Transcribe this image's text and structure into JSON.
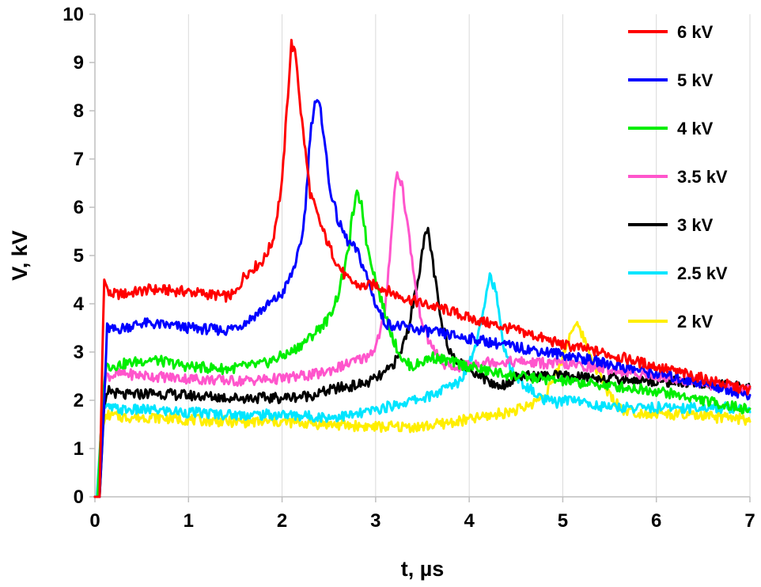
{
  "chart_data": {
    "type": "line",
    "title": "",
    "xlabel": "t, µs",
    "ylabel": "V, kV",
    "xlim": [
      0,
      7
    ],
    "ylim": [
      0,
      10
    ],
    "xticks": [
      0,
      1,
      2,
      3,
      4,
      5,
      6,
      7
    ],
    "yticks": [
      0,
      1,
      2,
      3,
      4,
      5,
      6,
      7,
      8,
      9,
      10
    ],
    "grid": "vertical",
    "legend": "right",
    "series": [
      {
        "name": "6 kV",
        "color": "#ff0000",
        "points": [
          [
            0,
            0
          ],
          [
            0.05,
            0
          ],
          [
            0.08,
            3.0
          ],
          [
            0.1,
            4.5
          ],
          [
            0.15,
            4.2
          ],
          [
            0.3,
            4.2
          ],
          [
            0.6,
            4.3
          ],
          [
            1.0,
            4.25
          ],
          [
            1.4,
            4.15
          ],
          [
            1.5,
            4.2
          ],
          [
            1.6,
            4.6
          ],
          [
            1.8,
            4.9
          ],
          [
            1.9,
            5.3
          ],
          [
            2.0,
            6.5
          ],
          [
            2.05,
            8.0
          ],
          [
            2.1,
            9.4
          ],
          [
            2.15,
            9.1
          ],
          [
            2.2,
            8.0
          ],
          [
            2.3,
            6.3
          ],
          [
            2.4,
            5.7
          ],
          [
            2.5,
            5.2
          ],
          [
            2.6,
            4.8
          ],
          [
            2.7,
            4.5
          ],
          [
            2.85,
            4.35
          ],
          [
            3.0,
            4.4
          ],
          [
            3.2,
            4.2
          ],
          [
            3.5,
            4.0
          ],
          [
            3.8,
            3.85
          ],
          [
            4.0,
            3.7
          ],
          [
            4.3,
            3.55
          ],
          [
            4.6,
            3.4
          ],
          [
            5.0,
            3.15
          ],
          [
            5.4,
            3.0
          ],
          [
            5.8,
            2.8
          ],
          [
            6.2,
            2.6
          ],
          [
            6.6,
            2.4
          ],
          [
            7.0,
            2.2
          ]
        ]
      },
      {
        "name": "5 kV",
        "color": "#0000ff",
        "points": [
          [
            0,
            0
          ],
          [
            0.05,
            0
          ],
          [
            0.1,
            2.0
          ],
          [
            0.13,
            3.5
          ],
          [
            0.2,
            3.45
          ],
          [
            0.5,
            3.6
          ],
          [
            0.8,
            3.55
          ],
          [
            1.0,
            3.5
          ],
          [
            1.4,
            3.45
          ],
          [
            1.6,
            3.6
          ],
          [
            1.8,
            3.9
          ],
          [
            2.0,
            4.2
          ],
          [
            2.1,
            4.6
          ],
          [
            2.2,
            5.2
          ],
          [
            2.25,
            6.0
          ],
          [
            2.3,
            7.5
          ],
          [
            2.35,
            8.2
          ],
          [
            2.4,
            8.1
          ],
          [
            2.45,
            7.5
          ],
          [
            2.5,
            6.5
          ],
          [
            2.6,
            5.7
          ],
          [
            2.7,
            5.3
          ],
          [
            2.8,
            5.1
          ],
          [
            2.9,
            4.6
          ],
          [
            3.0,
            4.0
          ],
          [
            3.1,
            3.6
          ],
          [
            3.2,
            3.55
          ],
          [
            3.5,
            3.45
          ],
          [
            3.8,
            3.35
          ],
          [
            4.1,
            3.25
          ],
          [
            4.5,
            3.1
          ],
          [
            5.0,
            2.95
          ],
          [
            5.5,
            2.75
          ],
          [
            6.0,
            2.55
          ],
          [
            6.5,
            2.35
          ],
          [
            7.0,
            2.1
          ]
        ]
      },
      {
        "name": "4 kV",
        "color": "#00ee00",
        "points": [
          [
            0,
            0
          ],
          [
            0.03,
            0
          ],
          [
            0.08,
            2.0
          ],
          [
            0.12,
            2.7
          ],
          [
            0.3,
            2.75
          ],
          [
            0.6,
            2.85
          ],
          [
            1.0,
            2.7
          ],
          [
            1.4,
            2.65
          ],
          [
            1.8,
            2.75
          ],
          [
            2.1,
            3.0
          ],
          [
            2.3,
            3.3
          ],
          [
            2.5,
            3.7
          ],
          [
            2.6,
            4.2
          ],
          [
            2.7,
            5.0
          ],
          [
            2.75,
            5.8
          ],
          [
            2.8,
            6.25
          ],
          [
            2.85,
            6.1
          ],
          [
            2.9,
            5.3
          ],
          [
            3.0,
            4.5
          ],
          [
            3.1,
            3.8
          ],
          [
            3.2,
            3.2
          ],
          [
            3.3,
            2.8
          ],
          [
            3.4,
            2.7
          ],
          [
            3.6,
            2.9
          ],
          [
            3.8,
            2.8
          ],
          [
            4.0,
            2.7
          ],
          [
            4.2,
            2.6
          ],
          [
            4.5,
            2.5
          ],
          [
            5.0,
            2.4
          ],
          [
            5.5,
            2.3
          ],
          [
            6.0,
            2.2
          ],
          [
            6.5,
            2.0
          ],
          [
            7.0,
            1.8
          ]
        ]
      },
      {
        "name": "3.5 kV",
        "color": "#ff55cc",
        "points": [
          [
            0,
            0
          ],
          [
            0.03,
            0
          ],
          [
            0.08,
            2.0
          ],
          [
            0.12,
            2.5
          ],
          [
            0.3,
            2.55
          ],
          [
            0.6,
            2.5
          ],
          [
            1.0,
            2.45
          ],
          [
            1.5,
            2.4
          ],
          [
            2.0,
            2.45
          ],
          [
            2.4,
            2.55
          ],
          [
            2.7,
            2.75
          ],
          [
            2.9,
            2.9
          ],
          [
            3.0,
            3.1
          ],
          [
            3.1,
            3.8
          ],
          [
            3.15,
            5.0
          ],
          [
            3.2,
            6.3
          ],
          [
            3.23,
            6.7
          ],
          [
            3.28,
            6.5
          ],
          [
            3.35,
            5.5
          ],
          [
            3.45,
            4.0
          ],
          [
            3.55,
            3.3
          ],
          [
            3.7,
            2.8
          ],
          [
            3.8,
            2.65
          ],
          [
            4.0,
            2.75
          ],
          [
            4.2,
            2.8
          ],
          [
            4.5,
            2.8
          ],
          [
            5.0,
            2.75
          ],
          [
            5.5,
            2.65
          ],
          [
            6.0,
            2.5
          ],
          [
            6.5,
            2.35
          ],
          [
            7.0,
            2.2
          ]
        ]
      },
      {
        "name": "3 kV",
        "color": "#000000",
        "points": [
          [
            0,
            0
          ],
          [
            0.05,
            0
          ],
          [
            0.1,
            1.9
          ],
          [
            0.15,
            2.2
          ],
          [
            0.3,
            2.1
          ],
          [
            0.6,
            2.15
          ],
          [
            1.0,
            2.1
          ],
          [
            1.5,
            2.05
          ],
          [
            2.0,
            2.05
          ],
          [
            2.3,
            2.1
          ],
          [
            2.6,
            2.25
          ],
          [
            2.9,
            2.35
          ],
          [
            3.1,
            2.55
          ],
          [
            3.25,
            2.9
          ],
          [
            3.35,
            3.5
          ],
          [
            3.45,
            4.5
          ],
          [
            3.52,
            5.3
          ],
          [
            3.56,
            5.55
          ],
          [
            3.6,
            5.0
          ],
          [
            3.7,
            3.6
          ],
          [
            3.8,
            3.0
          ],
          [
            3.95,
            2.7
          ],
          [
            4.1,
            2.55
          ],
          [
            4.2,
            2.4
          ],
          [
            4.3,
            2.3
          ],
          [
            4.4,
            2.35
          ],
          [
            4.5,
            2.5
          ],
          [
            5.0,
            2.5
          ],
          [
            5.5,
            2.45
          ],
          [
            6.0,
            2.4
          ],
          [
            6.5,
            2.35
          ],
          [
            7.0,
            2.25
          ]
        ]
      },
      {
        "name": "2.5 kV",
        "color": "#00e5ff",
        "points": [
          [
            0,
            0
          ],
          [
            0.02,
            0
          ],
          [
            0.07,
            1.5
          ],
          [
            0.1,
            1.85
          ],
          [
            0.3,
            1.8
          ],
          [
            0.6,
            1.8
          ],
          [
            1.0,
            1.75
          ],
          [
            1.5,
            1.7
          ],
          [
            2.0,
            1.7
          ],
          [
            2.5,
            1.65
          ],
          [
            2.8,
            1.7
          ],
          [
            3.2,
            1.9
          ],
          [
            3.6,
            2.1
          ],
          [
            3.9,
            2.4
          ],
          [
            4.05,
            3.0
          ],
          [
            4.15,
            3.9
          ],
          [
            4.22,
            4.6
          ],
          [
            4.28,
            4.3
          ],
          [
            4.35,
            3.3
          ],
          [
            4.45,
            2.6
          ],
          [
            4.6,
            2.3
          ],
          [
            4.8,
            2.0
          ],
          [
            4.95,
            1.95
          ],
          [
            5.1,
            2.05
          ],
          [
            5.3,
            1.9
          ],
          [
            5.6,
            1.85
          ],
          [
            6.0,
            1.85
          ],
          [
            6.5,
            1.85
          ],
          [
            7.0,
            1.85
          ]
        ]
      },
      {
        "name": "2 kV",
        "color": "#ffee00",
        "points": [
          [
            0,
            0
          ],
          [
            0.04,
            0
          ],
          [
            0.08,
            1.4
          ],
          [
            0.12,
            1.7
          ],
          [
            0.3,
            1.65
          ],
          [
            0.6,
            1.65
          ],
          [
            1.0,
            1.6
          ],
          [
            1.5,
            1.55
          ],
          [
            2.0,
            1.55
          ],
          [
            2.5,
            1.5
          ],
          [
            3.0,
            1.45
          ],
          [
            3.5,
            1.45
          ],
          [
            4.0,
            1.6
          ],
          [
            4.4,
            1.75
          ],
          [
            4.6,
            1.85
          ],
          [
            4.8,
            2.1
          ],
          [
            4.95,
            2.6
          ],
          [
            5.05,
            3.2
          ],
          [
            5.12,
            3.6
          ],
          [
            5.2,
            3.4
          ],
          [
            5.35,
            2.7
          ],
          [
            5.5,
            2.1
          ],
          [
            5.65,
            1.8
          ],
          [
            5.8,
            1.75
          ],
          [
            6.2,
            1.7
          ],
          [
            6.6,
            1.65
          ],
          [
            7.0,
            1.6
          ]
        ]
      }
    ]
  }
}
